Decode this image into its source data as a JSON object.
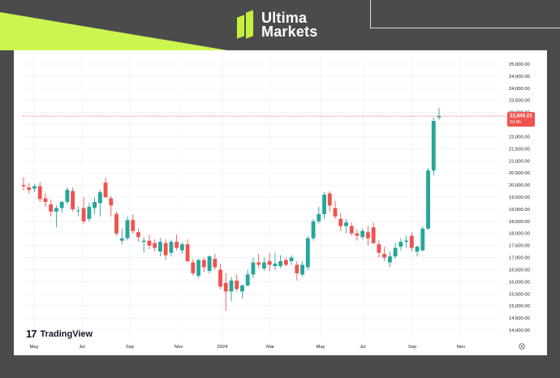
{
  "brand": {
    "line1": "Ultima",
    "line2": "Markets"
  },
  "watermark": "TradingView",
  "price_tag": {
    "price": "22,849.23",
    "countdown": "2d 8h"
  },
  "colors": {
    "up": "#26a69a",
    "down": "#ef5350",
    "lime": "#c9f24a",
    "dark": "#4b4b4b"
  },
  "settings_icon": "gear-icon",
  "chart_data": {
    "type": "candlestick",
    "title": "",
    "xlabel": "",
    "ylabel": "",
    "ylim": [
      13850,
      25150
    ],
    "y_ticks": [
      14000,
      14500,
      15000,
      15500,
      16000,
      16500,
      17000,
      17500,
      18000,
      18500,
      19000,
      19500,
      20000,
      20500,
      21000,
      21500,
      22000,
      22500,
      23000,
      23500,
      24000,
      24500,
      25000
    ],
    "y_tick_labels": [
      "14,000.00",
      "14,500.00",
      "15,000.00",
      "15,500.00",
      "16,000.00",
      "16,500.00",
      "17,000.00",
      "17,500.00",
      "18,000.00",
      "18,500.00",
      "19,000.00",
      "19,500.00",
      "20,000.00",
      "20,500.00",
      "21,000.00",
      "21,500.00",
      "22,000.00",
      "22,500.00",
      "23,000.00",
      "23,500.00",
      "24,000.00",
      "24,500.00",
      "25,000.00"
    ],
    "x_tick_labels": [
      "May",
      "Jul",
      "Sep",
      "Nov",
      "2024",
      "Mar",
      "May",
      "Jul",
      "Sep",
      "Nov"
    ],
    "last_price": 22849.23,
    "grid": true,
    "candles": [
      {
        "o": 20000,
        "h": 20320,
        "l": 19780,
        "c": 19950
      },
      {
        "o": 19900,
        "h": 20080,
        "l": 19650,
        "c": 19800
      },
      {
        "o": 19850,
        "h": 20050,
        "l": 19700,
        "c": 19950
      },
      {
        "o": 19950,
        "h": 20120,
        "l": 19300,
        "c": 19420
      },
      {
        "o": 19450,
        "h": 19680,
        "l": 19100,
        "c": 19300
      },
      {
        "o": 19200,
        "h": 19400,
        "l": 18700,
        "c": 18900
      },
      {
        "o": 18900,
        "h": 19150,
        "l": 18250,
        "c": 19050
      },
      {
        "o": 19050,
        "h": 19350,
        "l": 18850,
        "c": 19300
      },
      {
        "o": 19300,
        "h": 19900,
        "l": 19200,
        "c": 19800
      },
      {
        "o": 19750,
        "h": 19900,
        "l": 18900,
        "c": 19000
      },
      {
        "o": 18950,
        "h": 19100,
        "l": 18700,
        "c": 18950
      },
      {
        "o": 19050,
        "h": 19500,
        "l": 18400,
        "c": 18500
      },
      {
        "o": 18600,
        "h": 19250,
        "l": 18500,
        "c": 19100
      },
      {
        "o": 19050,
        "h": 19480,
        "l": 18800,
        "c": 19300
      },
      {
        "o": 19250,
        "h": 19800,
        "l": 18700,
        "c": 19700
      },
      {
        "o": 20100,
        "h": 20300,
        "l": 19450,
        "c": 19500
      },
      {
        "o": 19450,
        "h": 19550,
        "l": 18700,
        "c": 19150
      },
      {
        "o": 18800,
        "h": 18900,
        "l": 17900,
        "c": 18000
      },
      {
        "o": 17700,
        "h": 18200,
        "l": 17550,
        "c": 17800
      },
      {
        "o": 17800,
        "h": 18700,
        "l": 17700,
        "c": 18550
      },
      {
        "o": 18550,
        "h": 18780,
        "l": 18000,
        "c": 18100
      },
      {
        "o": 18050,
        "h": 18200,
        "l": 17650,
        "c": 17850
      },
      {
        "o": 17650,
        "h": 17850,
        "l": 17200,
        "c": 17700
      },
      {
        "o": 17700,
        "h": 17950,
        "l": 17350,
        "c": 17500
      },
      {
        "o": 17600,
        "h": 17750,
        "l": 17250,
        "c": 17400
      },
      {
        "o": 17250,
        "h": 17800,
        "l": 17050,
        "c": 17650
      },
      {
        "o": 17600,
        "h": 17750,
        "l": 16900,
        "c": 17100
      },
      {
        "o": 17200,
        "h": 17750,
        "l": 17050,
        "c": 17650
      },
      {
        "o": 17650,
        "h": 17950,
        "l": 17300,
        "c": 17400
      },
      {
        "o": 17300,
        "h": 17650,
        "l": 17150,
        "c": 17550
      },
      {
        "o": 17550,
        "h": 17750,
        "l": 16800,
        "c": 16850
      },
      {
        "o": 16800,
        "h": 16950,
        "l": 16250,
        "c": 16350
      },
      {
        "o": 16250,
        "h": 16950,
        "l": 16150,
        "c": 16900
      },
      {
        "o": 16900,
        "h": 17000,
        "l": 16400,
        "c": 16600
      },
      {
        "o": 16450,
        "h": 17100,
        "l": 16350,
        "c": 17050
      },
      {
        "o": 16950,
        "h": 17150,
        "l": 16500,
        "c": 16600
      },
      {
        "o": 16500,
        "h": 16750,
        "l": 15700,
        "c": 15800
      },
      {
        "o": 15950,
        "h": 16350,
        "l": 14800,
        "c": 15600
      },
      {
        "o": 15600,
        "h": 16200,
        "l": 15200,
        "c": 16050
      },
      {
        "o": 16050,
        "h": 16300,
        "l": 15600,
        "c": 15700
      },
      {
        "o": 15600,
        "h": 15900,
        "l": 15300,
        "c": 15850
      },
      {
        "o": 15850,
        "h": 16500,
        "l": 15800,
        "c": 16300
      },
      {
        "o": 16300,
        "h": 17000,
        "l": 16150,
        "c": 16800
      },
      {
        "o": 16800,
        "h": 17150,
        "l": 16550,
        "c": 16700
      },
      {
        "o": 16550,
        "h": 17000,
        "l": 16450,
        "c": 16800
      },
      {
        "o": 16850,
        "h": 17200,
        "l": 16450,
        "c": 16700
      },
      {
        "o": 16650,
        "h": 17200,
        "l": 16500,
        "c": 16750
      },
      {
        "o": 16650,
        "h": 17100,
        "l": 16550,
        "c": 16850
      },
      {
        "o": 16900,
        "h": 17000,
        "l": 16650,
        "c": 16700
      },
      {
        "o": 16850,
        "h": 17100,
        "l": 16700,
        "c": 17000
      },
      {
        "o": 16700,
        "h": 16850,
        "l": 16050,
        "c": 16350
      },
      {
        "o": 16300,
        "h": 16850,
        "l": 16200,
        "c": 16700
      },
      {
        "o": 16600,
        "h": 17900,
        "l": 16500,
        "c": 17800
      },
      {
        "o": 17800,
        "h": 18600,
        "l": 17700,
        "c": 18500
      },
      {
        "o": 18500,
        "h": 19100,
        "l": 18400,
        "c": 18800
      },
      {
        "o": 18800,
        "h": 19700,
        "l": 18600,
        "c": 19600
      },
      {
        "o": 19650,
        "h": 19750,
        "l": 18900,
        "c": 19150
      },
      {
        "o": 19050,
        "h": 19350,
        "l": 18600,
        "c": 18700
      },
      {
        "o": 18600,
        "h": 18850,
        "l": 18100,
        "c": 18300
      },
      {
        "o": 18300,
        "h": 18600,
        "l": 18000,
        "c": 18450
      },
      {
        "o": 18300,
        "h": 18450,
        "l": 17900,
        "c": 18000
      },
      {
        "o": 18000,
        "h": 18150,
        "l": 17700,
        "c": 17900
      },
      {
        "o": 17850,
        "h": 18200,
        "l": 17750,
        "c": 18100
      },
      {
        "o": 18050,
        "h": 18300,
        "l": 17500,
        "c": 17800
      },
      {
        "o": 18250,
        "h": 18450,
        "l": 17550,
        "c": 17600
      },
      {
        "o": 17550,
        "h": 17700,
        "l": 17000,
        "c": 17200
      },
      {
        "o": 17150,
        "h": 17450,
        "l": 16850,
        "c": 17000
      },
      {
        "o": 16800,
        "h": 17250,
        "l": 16600,
        "c": 17050
      },
      {
        "o": 17050,
        "h": 17600,
        "l": 16950,
        "c": 17400
      },
      {
        "o": 17450,
        "h": 17800,
        "l": 17300,
        "c": 17650
      },
      {
        "o": 17650,
        "h": 17900,
        "l": 17400,
        "c": 17700
      },
      {
        "o": 17900,
        "h": 18050,
        "l": 17250,
        "c": 17400
      },
      {
        "o": 17250,
        "h": 17500,
        "l": 17050,
        "c": 17450
      },
      {
        "o": 17300,
        "h": 18300,
        "l": 17250,
        "c": 18200
      },
      {
        "o": 18200,
        "h": 20700,
        "l": 18150,
        "c": 20600
      },
      {
        "o": 20600,
        "h": 22800,
        "l": 20400,
        "c": 22650
      },
      {
        "o": 22800,
        "h": 23200,
        "l": 22700,
        "c": 22849.23
      }
    ]
  }
}
